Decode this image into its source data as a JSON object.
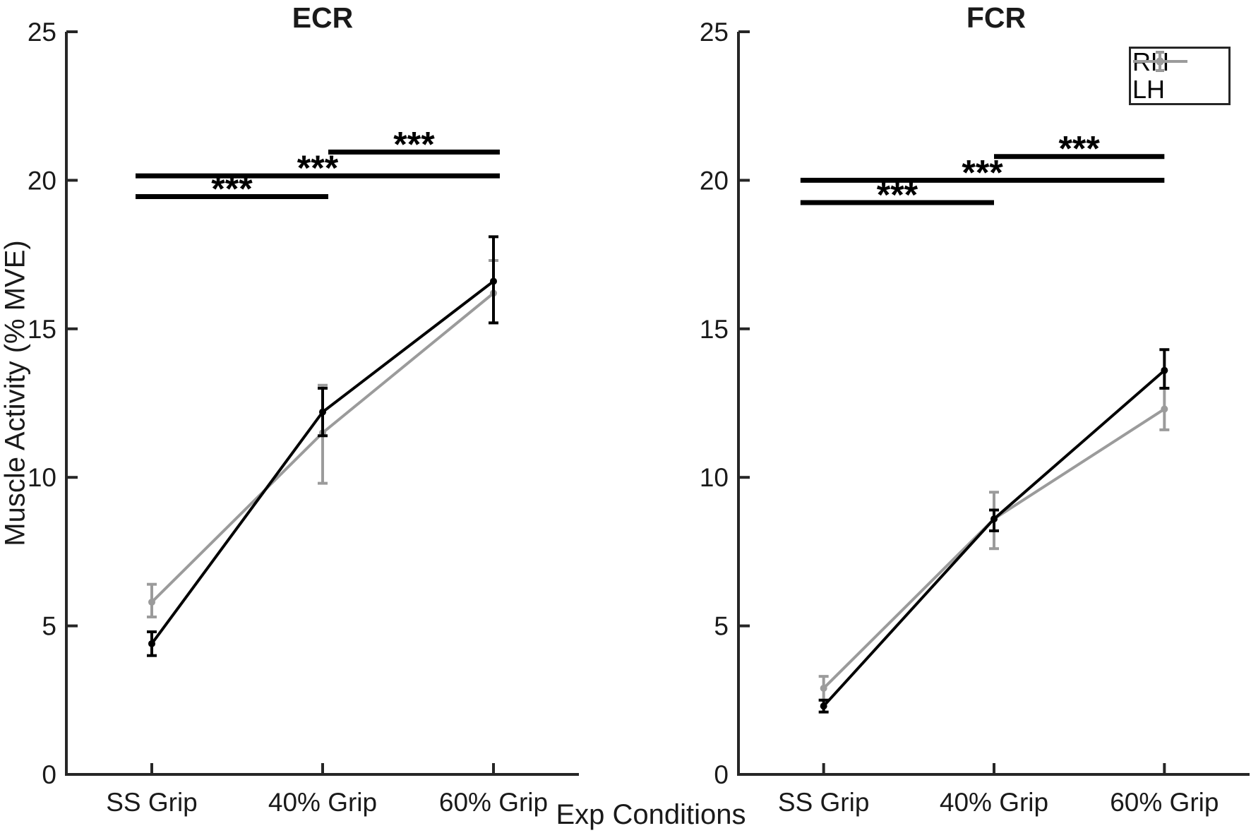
{
  "figure": {
    "background": "#ffffff",
    "axis_color": "#262626",
    "text_color": "#1a1a1a",
    "xlabel": "Exp Conditions",
    "ylabel": "Muscle Activity (% MVE)"
  },
  "legend": {
    "position": "top-right",
    "entries": [
      {
        "label": "RH",
        "color": "#000000"
      },
      {
        "label": "LH",
        "color": "#9b9b9b"
      }
    ]
  },
  "chart_data": [
    {
      "type": "line",
      "title": "ECR",
      "categories": [
        "SS Grip",
        "40% Grip",
        "60% Grip"
      ],
      "xlabel": "Exp Conditions",
      "ylabel": "Muscle Activity (% MVE)",
      "ylim": [
        0,
        25
      ],
      "yticks": [
        0,
        5,
        10,
        15,
        20,
        25
      ],
      "grid": false,
      "legend_position": "none",
      "series": [
        {
          "name": "RH",
          "color": "#000000",
          "values": [
            4.4,
            12.2,
            16.6
          ],
          "err_low": [
            0.4,
            0.8,
            1.4
          ],
          "err_high": [
            0.4,
            0.8,
            1.5
          ]
        },
        {
          "name": "LH",
          "color": "#9b9b9b",
          "values": [
            5.8,
            11.5,
            16.2
          ],
          "err_low": [
            0.5,
            1.7,
            1.0
          ],
          "err_high": [
            0.6,
            1.6,
            1.1
          ]
        }
      ],
      "significance": [
        {
          "x1": -0.095,
          "x2": 1.033,
          "y": 19.45,
          "label": "***"
        },
        {
          "x1": -0.095,
          "x2": 2.037,
          "y": 20.15,
          "label": "***"
        },
        {
          "x1": 1.033,
          "x2": 2.037,
          "y": 20.95,
          "label": "***"
        }
      ]
    },
    {
      "type": "line",
      "title": "FCR",
      "categories": [
        "SS Grip",
        "40% Grip",
        "60% Grip"
      ],
      "xlabel": "Exp Conditions",
      "ylabel": "Muscle Activity (% MVE)",
      "ylim": [
        0,
        25
      ],
      "yticks": [
        0,
        5,
        10,
        15,
        20,
        25
      ],
      "grid": false,
      "legend_position": "top-right",
      "series": [
        {
          "name": "RH",
          "color": "#000000",
          "values": [
            2.3,
            8.6,
            13.6
          ],
          "err_low": [
            0.2,
            0.4,
            0.6
          ],
          "err_high": [
            0.2,
            0.3,
            0.7
          ]
        },
        {
          "name": "LH",
          "color": "#9b9b9b",
          "values": [
            2.9,
            8.6,
            12.3
          ],
          "err_low": [
            0.4,
            1.0,
            0.7
          ],
          "err_high": [
            0.4,
            0.9,
            0.7
          ]
        }
      ],
      "significance": [
        {
          "x1": -0.136,
          "x2": 1.0,
          "y": 19.25,
          "label": "***"
        },
        {
          "x1": -0.136,
          "x2": 2.0,
          "y": 20.0,
          "label": "***"
        },
        {
          "x1": 1.0,
          "x2": 2.0,
          "y": 20.8,
          "label": "***"
        }
      ]
    }
  ]
}
